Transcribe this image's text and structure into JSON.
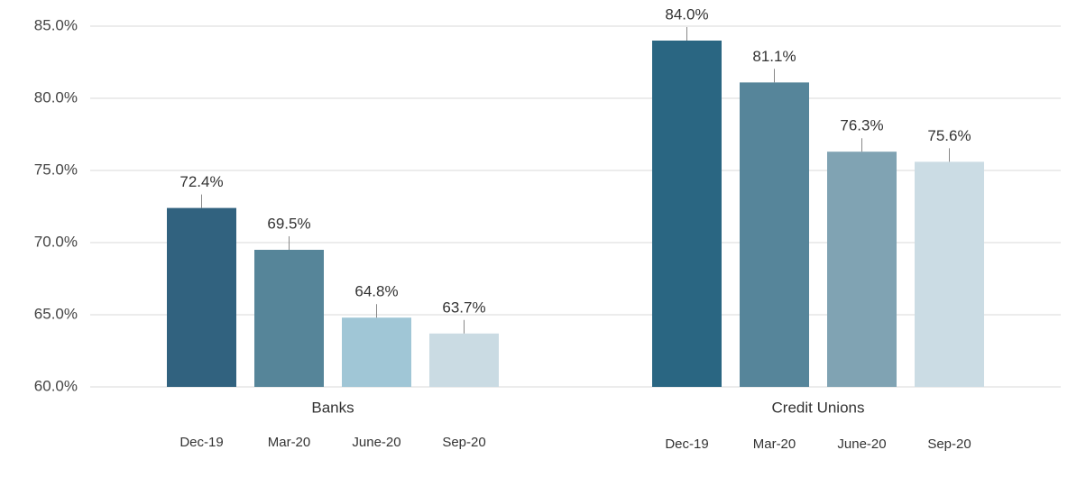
{
  "chart_data": {
    "type": "bar",
    "categories": [
      "Banks",
      "Credit Unions"
    ],
    "series": [
      {
        "name": "Dec-19",
        "colors": [
          "#31627f",
          "#2a6682"
        ],
        "values": [
          72.4,
          84.0
        ],
        "value_labels": [
          "72.4%",
          "84.0%"
        ]
      },
      {
        "name": "Mar-20",
        "colors": [
          "#568599",
          "#56859a"
        ],
        "values": [
          69.5,
          81.1
        ],
        "value_labels": [
          "69.5%",
          "81.1%"
        ]
      },
      {
        "name": "June-20",
        "colors": [
          "#a0c6d6",
          "#80a3b3"
        ],
        "values": [
          64.8,
          76.3
        ],
        "value_labels": [
          "64.8%",
          "76.3%"
        ]
      },
      {
        "name": "Sep-20",
        "colors": [
          "#cadbe3",
          "#cbdce4"
        ],
        "values": [
          63.7,
          75.6
        ],
        "value_labels": [
          "63.7%",
          "75.6%"
        ]
      }
    ],
    "ylim": [
      60,
      85
    ],
    "yticks": [
      {
        "value": 60,
        "label": "60.0%"
      },
      {
        "value": 65,
        "label": "65.0%"
      },
      {
        "value": 70,
        "label": "70.0%"
      },
      {
        "value": 75,
        "label": "75.0%"
      },
      {
        "value": 80,
        "label": "80.0%"
      },
      {
        "value": 85,
        "label": "85.0%"
      }
    ],
    "grid": true
  }
}
